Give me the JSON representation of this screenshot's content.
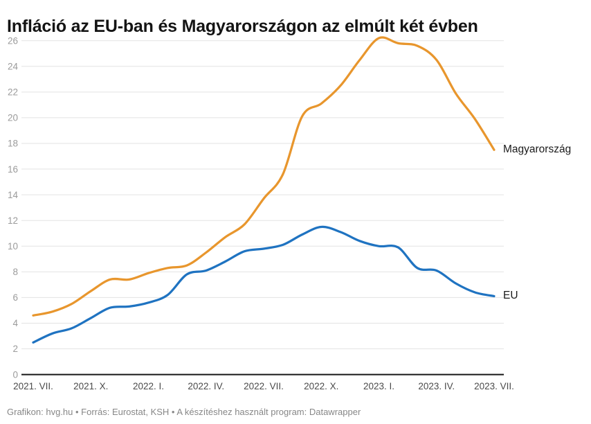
{
  "title": "Infláció az EU-ban és Magyarországon az elmúlt két évben",
  "footer": {
    "text": "Grafikon: hvg.hu • Forrás: Eurostat, KSH • A készítéshez használt program: Datawrapper"
  },
  "colors": {
    "background": "#ffffff",
    "title": "#141414",
    "gridline": "#e3e3e3",
    "axis_line": "#161616",
    "y_tick_label": "#9b9b9b",
    "x_tick_label": "#4a4a4a",
    "series_label": "#1a1a1a",
    "footer": "#878787",
    "magyarorszag": "#E8962D",
    "eu": "#1F73C1"
  },
  "chart_data": {
    "type": "line",
    "title": "Infláció az EU-ban és Magyarországon az elmúlt két évben",
    "grid": "horizontal-only",
    "legend_position": "line-end-labels",
    "ylim": [
      0,
      26
    ],
    "y_ticks": [
      0,
      2,
      4,
      6,
      8,
      10,
      12,
      14,
      16,
      18,
      20,
      22,
      24,
      26
    ],
    "x_tick_labels": [
      "2021. VII.",
      "2021. X.",
      "2022. I.",
      "2022. IV.",
      "2022. VII.",
      "2022. X.",
      "2023. I.",
      "2023. IV.",
      "2023. VII."
    ],
    "categories": [
      "2021. VII.",
      "2021. VIII.",
      "2021. IX.",
      "2021. X.",
      "2021. XI.",
      "2021. XII.",
      "2022. I.",
      "2022. II.",
      "2022. III.",
      "2022. IV.",
      "2022. V.",
      "2022. VI.",
      "2022. VII.",
      "2022. VIII.",
      "2022. IX.",
      "2022. X.",
      "2022. XI.",
      "2022. XII.",
      "2023. I.",
      "2023. II.",
      "2023. III.",
      "2023. IV.",
      "2023. V.",
      "2023. VI.",
      "2023. VII."
    ],
    "series": [
      {
        "name": "Magyarország",
        "color": "#E8962D",
        "values": [
          4.6,
          4.9,
          5.5,
          6.5,
          7.4,
          7.4,
          7.9,
          8.3,
          8.5,
          9.5,
          10.7,
          11.7,
          13.7,
          15.6,
          20.1,
          21.1,
          22.5,
          24.5,
          26.2,
          25.8,
          25.6,
          24.5,
          21.9,
          19.9,
          17.5
        ]
      },
      {
        "name": "EU",
        "color": "#1F73C1",
        "values": [
          2.5,
          3.2,
          3.6,
          4.4,
          5.2,
          5.3,
          5.6,
          6.2,
          7.8,
          8.1,
          8.8,
          9.6,
          9.8,
          10.1,
          10.9,
          11.5,
          11.1,
          10.4,
          10.0,
          9.9,
          8.3,
          8.1,
          7.1,
          6.4,
          6.1
        ]
      }
    ]
  }
}
